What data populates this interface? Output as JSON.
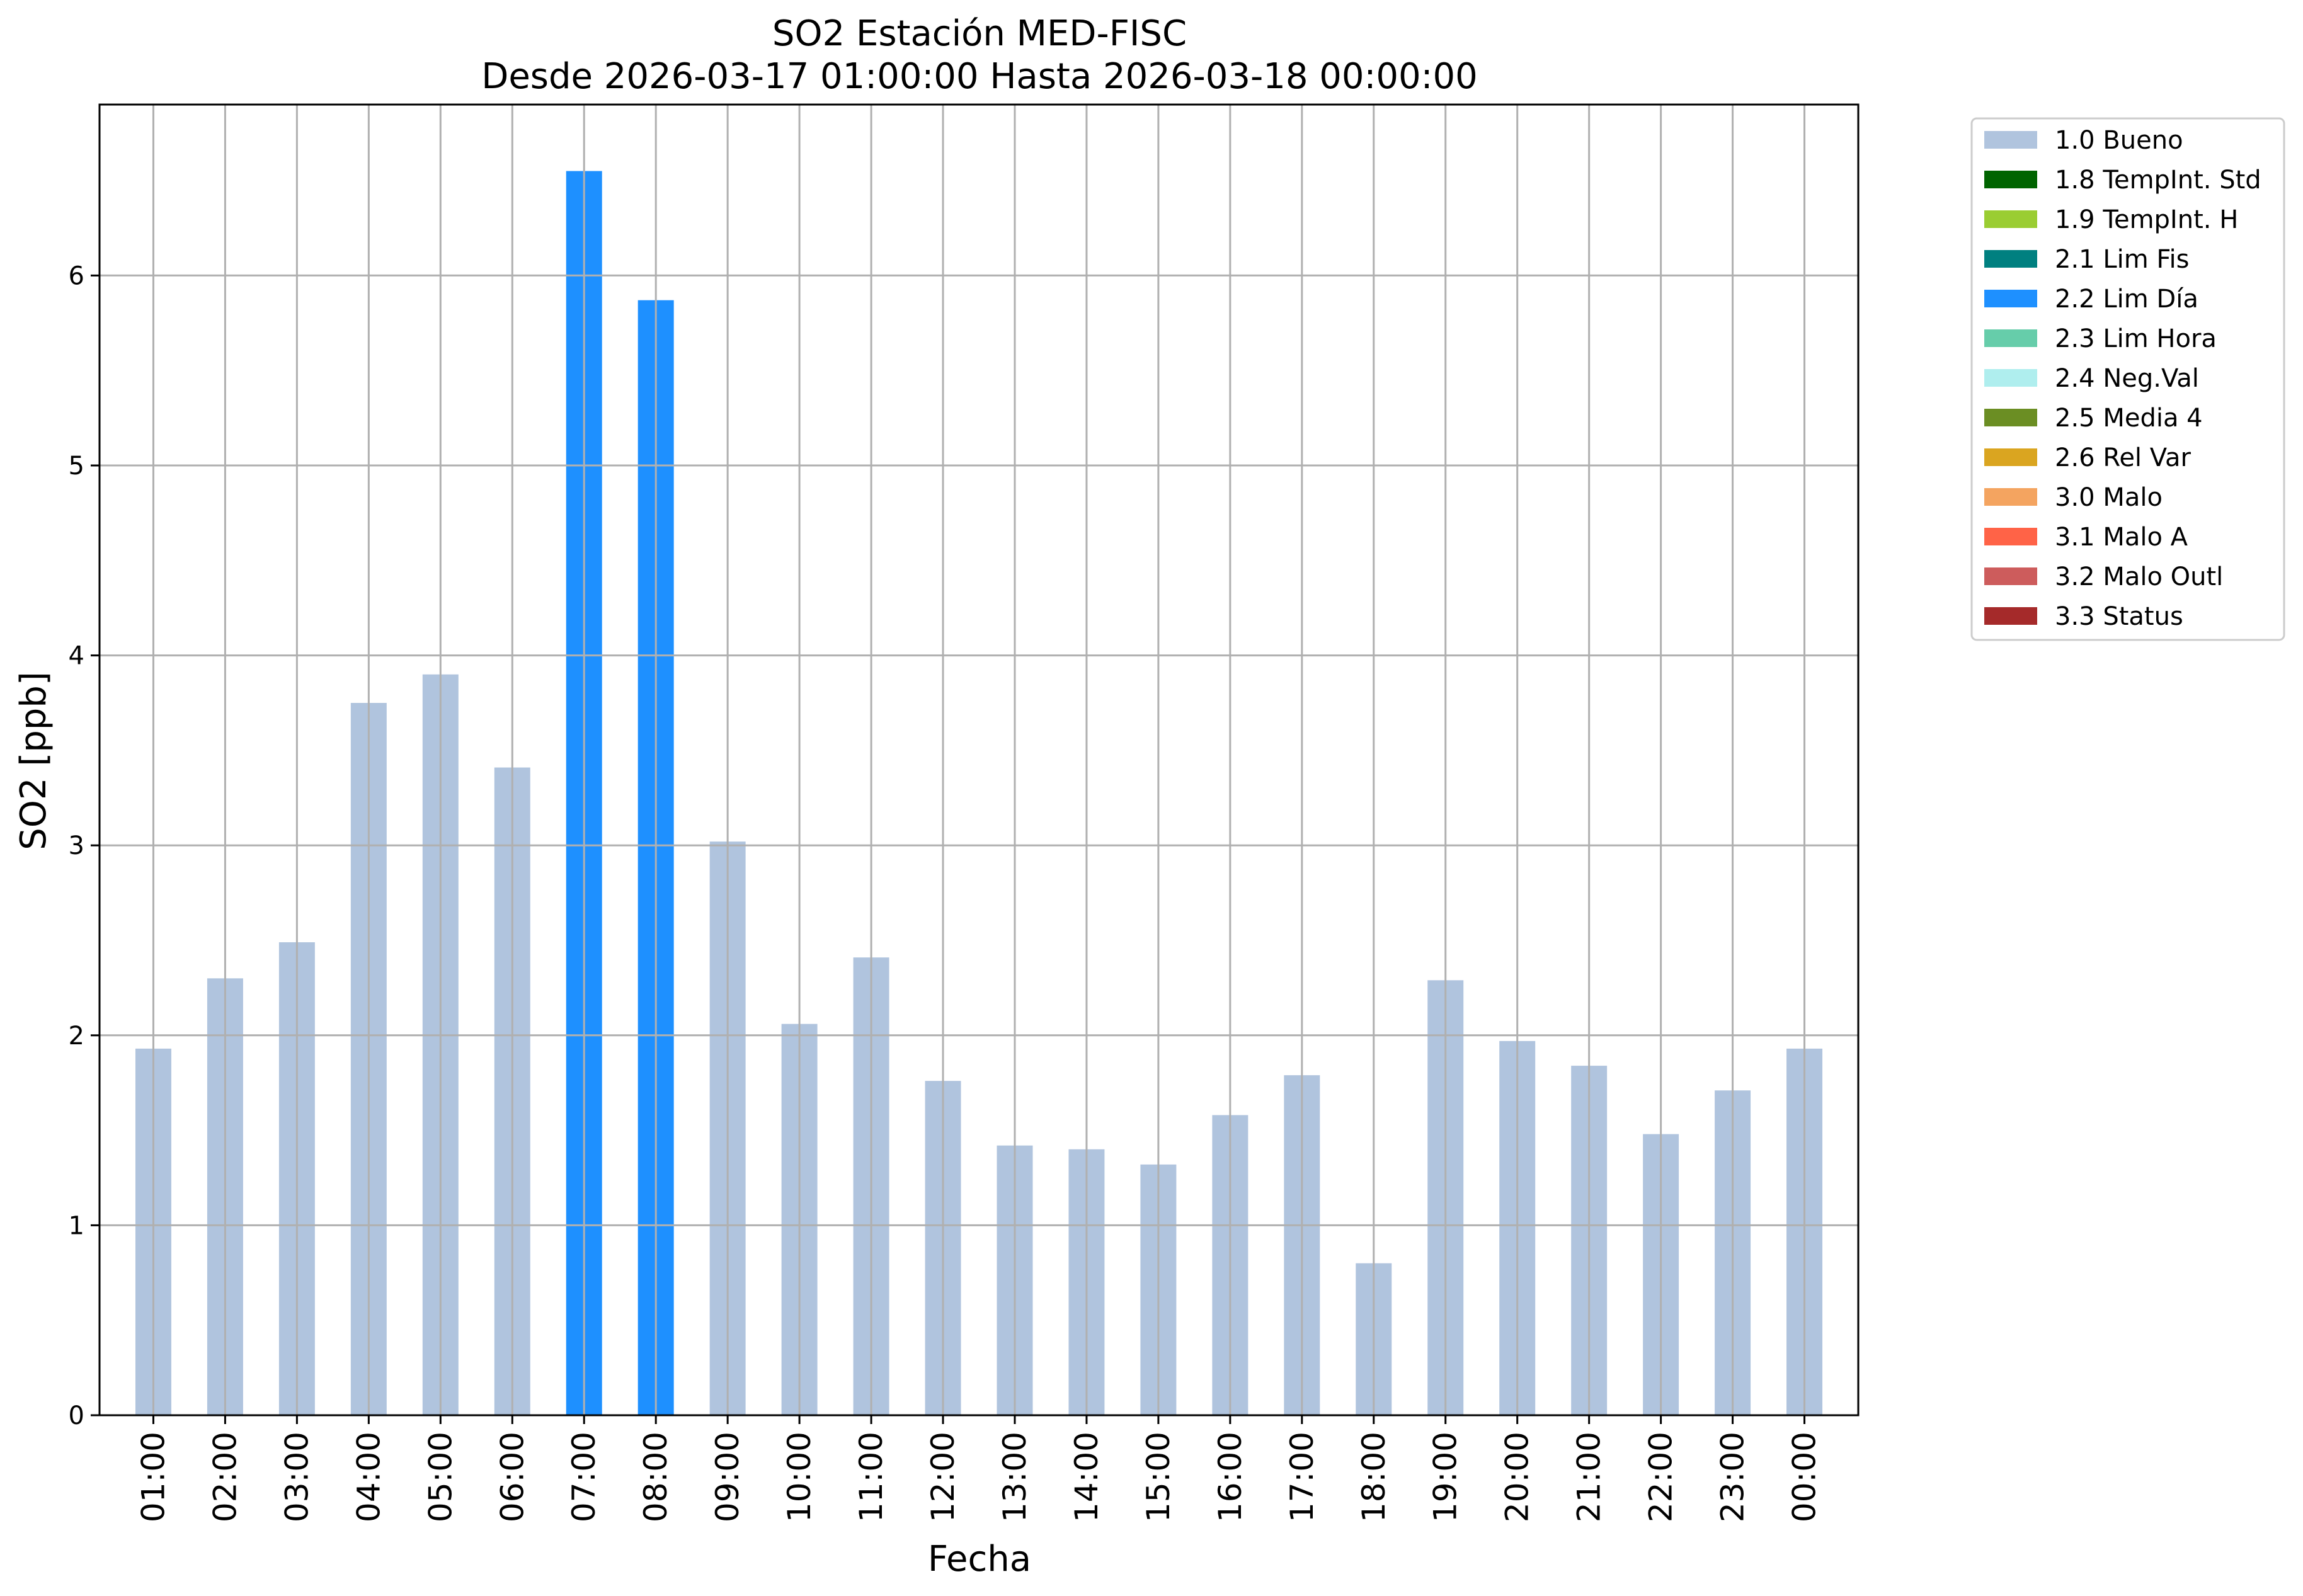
{
  "chart_data": {
    "type": "bar",
    "title": "SO2 Estación MED-FISC",
    "subtitle": "Desde 2026-03-17 01:00:00 Hasta 2026-03-18 00:00:00",
    "xlabel": "Fecha",
    "ylabel": "SO2 [ppb]",
    "ylim": [
      0,
      6.9
    ],
    "yticks": [
      0,
      1,
      2,
      3,
      4,
      5,
      6
    ],
    "grid": true,
    "legend_position": "outside top-right",
    "categories": [
      "01:00",
      "02:00",
      "03:00",
      "04:00",
      "05:00",
      "06:00",
      "07:00",
      "08:00",
      "09:00",
      "10:00",
      "11:00",
      "12:00",
      "13:00",
      "14:00",
      "15:00",
      "16:00",
      "17:00",
      "18:00",
      "19:00",
      "20:00",
      "21:00",
      "22:00",
      "23:00",
      "00:00"
    ],
    "values": [
      1.93,
      2.3,
      2.49,
      3.75,
      3.9,
      3.41,
      6.55,
      5.87,
      3.02,
      2.06,
      2.41,
      1.76,
      1.42,
      1.4,
      1.32,
      1.58,
      1.79,
      0.8,
      2.29,
      1.97,
      1.84,
      1.48,
      1.71,
      1.93
    ],
    "flags": [
      "1.0 Bueno",
      "1.0 Bueno",
      "1.0 Bueno",
      "1.0 Bueno",
      "1.0 Bueno",
      "1.0 Bueno",
      "2.2 Lim Día",
      "2.2 Lim Día",
      "1.0 Bueno",
      "1.0 Bueno",
      "1.0 Bueno",
      "1.0 Bueno",
      "1.0 Bueno",
      "1.0 Bueno",
      "1.0 Bueno",
      "1.0 Bueno",
      "1.0 Bueno",
      "1.0 Bueno",
      "1.0 Bueno",
      "1.0 Bueno",
      "1.0 Bueno",
      "1.0 Bueno",
      "1.0 Bueno",
      "1.0 Bueno"
    ],
    "legend": [
      {
        "label": "1.0 Bueno",
        "color": "#b0c4de"
      },
      {
        "label": "1.8 TempInt. Std",
        "color": "#006400"
      },
      {
        "label": "1.9 TempInt. H",
        "color": "#9acd32"
      },
      {
        "label": "2.1 Lim Fis",
        "color": "#008080"
      },
      {
        "label": "2.2 Lim Día",
        "color": "#1e90ff"
      },
      {
        "label": "2.3 Lim Hora",
        "color": "#66cdaa"
      },
      {
        "label": "2.4 Neg.Val",
        "color": "#afeeee"
      },
      {
        "label": "2.5 Media 4",
        "color": "#6b8e23"
      },
      {
        "label": "2.6 Rel Var",
        "color": "#daa520"
      },
      {
        "label": "3.0 Malo",
        "color": "#f4a460"
      },
      {
        "label": "3.1 Malo A",
        "color": "#ff6347"
      },
      {
        "label": "3.2 Malo Outl",
        "color": "#cd5c5c"
      },
      {
        "label": "3.3 Status",
        "color": "#a52a2a"
      }
    ]
  }
}
